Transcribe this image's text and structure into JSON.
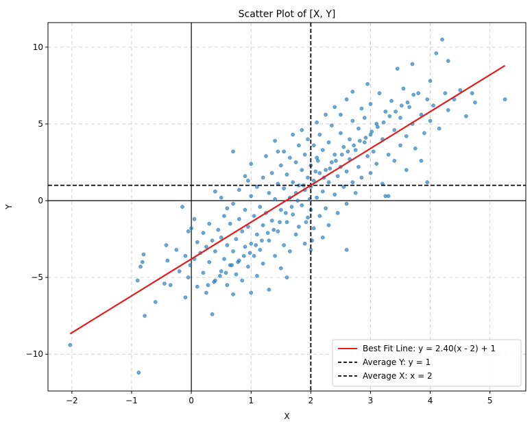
{
  "chart_data": {
    "type": "scatter",
    "title": "Scatter Plot of [X, Y]",
    "xlabel": "X",
    "ylabel": "Y",
    "xlim": [
      -2.4,
      5.6
    ],
    "ylim": [
      -12.4,
      11.6
    ],
    "xticks": [
      -2,
      -1,
      0,
      1,
      2,
      3,
      4,
      5
    ],
    "yticks": [
      -10,
      -5,
      0,
      5,
      10
    ],
    "xtick_labels": [
      "−2",
      "−1",
      "0",
      "1",
      "2",
      "3",
      "4",
      "5"
    ],
    "ytick_labels": [
      "−10",
      "−5",
      "0",
      "5",
      "10"
    ],
    "grid": true,
    "legend_position": "lower-right",
    "series": [
      {
        "kind": "points",
        "color": "#1f77b4",
        "points": [
          [
            -2.03,
            -9.4
          ],
          [
            -0.88,
            -11.2
          ],
          [
            -0.9,
            -5.2
          ],
          [
            -0.85,
            -4.3
          ],
          [
            -0.8,
            -3.5
          ],
          [
            -0.78,
            -7.5
          ],
          [
            -0.82,
            -4.0
          ],
          [
            -0.6,
            -6.6
          ],
          [
            -0.45,
            -5.4
          ],
          [
            -0.4,
            -3.9
          ],
          [
            -0.42,
            -2.9
          ],
          [
            -0.35,
            -5.5
          ],
          [
            -0.25,
            -3.2
          ],
          [
            -0.2,
            -4.6
          ],
          [
            -0.15,
            -0.4
          ],
          [
            -0.1,
            -6.3
          ],
          [
            -0.1,
            -3.6
          ],
          [
            -0.05,
            -5.0
          ],
          [
            -0.02,
            -4.2
          ],
          [
            0.0,
            -1.8
          ],
          [
            -0.05,
            -2.0
          ],
          [
            0.05,
            -3.8
          ],
          [
            0.1,
            -2.7
          ],
          [
            0.05,
            -1.2
          ],
          [
            0.1,
            -5.6
          ],
          [
            0.15,
            -3.4
          ],
          [
            0.2,
            -2.1
          ],
          [
            0.2,
            -4.7
          ],
          [
            0.25,
            -3.0
          ],
          [
            0.25,
            -6.0
          ],
          [
            0.3,
            -1.5
          ],
          [
            0.3,
            -4.0
          ],
          [
            0.35,
            -7.4
          ],
          [
            0.35,
            -2.6
          ],
          [
            0.4,
            -5.2
          ],
          [
            0.4,
            -3.3
          ],
          [
            0.4,
            0.6
          ],
          [
            0.45,
            -1.9
          ],
          [
            0.5,
            -4.6
          ],
          [
            0.5,
            -2.4
          ],
          [
            0.5,
            0.2
          ],
          [
            0.55,
            -3.8
          ],
          [
            0.55,
            -1.0
          ],
          [
            0.6,
            -5.5
          ],
          [
            0.6,
            -2.9
          ],
          [
            0.6,
            -0.5
          ],
          [
            0.65,
            -4.2
          ],
          [
            0.65,
            -1.5
          ],
          [
            0.7,
            -6.1
          ],
          [
            0.7,
            -3.3
          ],
          [
            0.7,
            -0.2
          ],
          [
            0.7,
            3.2
          ],
          [
            0.75,
            -2.5
          ],
          [
            0.75,
            -4.8
          ],
          [
            0.8,
            -1.2
          ],
          [
            0.8,
            -3.9
          ],
          [
            0.8,
            0.7
          ],
          [
            0.85,
            -2.0
          ],
          [
            0.85,
            -5.2
          ],
          [
            0.9,
            -0.6
          ],
          [
            0.9,
            -3.0
          ],
          [
            0.9,
            1.6
          ],
          [
            0.95,
            -4.3
          ],
          [
            0.95,
            -1.7
          ],
          [
            1.0,
            -6.0
          ],
          [
            1.0,
            -2.8
          ],
          [
            1.0,
            0.3
          ],
          [
            1.0,
            2.4
          ],
          [
            1.05,
            -3.6
          ],
          [
            1.05,
            -1.0
          ],
          [
            1.1,
            -4.9
          ],
          [
            1.1,
            -2.2
          ],
          [
            1.1,
            0.9
          ],
          [
            1.15,
            -0.4
          ],
          [
            1.15,
            -3.2
          ],
          [
            1.2,
            1.5
          ],
          [
            1.2,
            -1.6
          ],
          [
            1.2,
            -4.1
          ],
          [
            1.25,
            2.9
          ],
          [
            1.25,
            -0.8
          ],
          [
            1.3,
            -2.6
          ],
          [
            1.3,
            0.5
          ],
          [
            1.3,
            -5.8
          ],
          [
            1.35,
            1.8
          ],
          [
            1.35,
            -1.3
          ],
          [
            1.4,
            -3.6
          ],
          [
            1.4,
            3.9
          ],
          [
            1.4,
            0.1
          ],
          [
            1.45,
            -2.0
          ],
          [
            1.45,
            1.1
          ],
          [
            1.5,
            -0.6
          ],
          [
            1.5,
            -4.4
          ],
          [
            1.5,
            2.3
          ],
          [
            1.55,
            0.8
          ],
          [
            1.55,
            -2.9
          ],
          [
            1.55,
            3.2
          ],
          [
            1.6,
            -1.4
          ],
          [
            1.6,
            1.7
          ],
          [
            1.6,
            -5.0
          ],
          [
            1.65,
            0.2
          ],
          [
            1.65,
            2.8
          ],
          [
            1.65,
            -3.3
          ],
          [
            1.7,
            4.3
          ],
          [
            1.7,
            -0.9
          ],
          [
            1.7,
            1.2
          ],
          [
            1.75,
            -2.2
          ],
          [
            1.75,
            2.5
          ],
          [
            1.75,
            0.5
          ],
          [
            1.8,
            -1.7
          ],
          [
            1.8,
            3.6
          ],
          [
            1.8,
            1.0
          ],
          [
            1.85,
            -0.3
          ],
          [
            1.85,
            4.6
          ],
          [
            1.85,
            2.0
          ],
          [
            1.9,
            -2.8
          ],
          [
            1.9,
            0.7
          ],
          [
            1.9,
            3.0
          ],
          [
            1.95,
            -1.1
          ],
          [
            1.95,
            1.5
          ],
          [
            1.95,
            4.0
          ],
          [
            2.0,
            -0.6
          ],
          [
            2.0,
            2.3
          ],
          [
            2.0,
            0.9
          ],
          [
            2.0,
            -3.2
          ],
          [
            2.05,
            3.6
          ],
          [
            2.05,
            1.3
          ],
          [
            2.05,
            -1.8
          ],
          [
            2.1,
            5.1
          ],
          [
            2.1,
            0.2
          ],
          [
            2.1,
            2.8
          ],
          [
            2.15,
            -1.0
          ],
          [
            2.15,
            4.3
          ],
          [
            2.15,
            1.8
          ],
          [
            2.2,
            -2.4
          ],
          [
            2.2,
            3.3
          ],
          [
            2.2,
            0.6
          ],
          [
            2.25,
            5.6
          ],
          [
            2.25,
            2.0
          ],
          [
            2.25,
            -0.5
          ],
          [
            2.3,
            3.8
          ],
          [
            2.3,
            1.2
          ],
          [
            2.3,
            -1.6
          ],
          [
            2.35,
            4.9
          ],
          [
            2.35,
            2.5
          ],
          [
            2.4,
            0.4
          ],
          [
            2.4,
            6.1
          ],
          [
            2.4,
            3.0
          ],
          [
            2.45,
            1.6
          ],
          [
            2.45,
            -0.8
          ],
          [
            2.5,
            4.4
          ],
          [
            2.5,
            2.2
          ],
          [
            2.5,
            5.6
          ],
          [
            2.55,
            0.9
          ],
          [
            2.55,
            3.5
          ],
          [
            2.6,
            6.6
          ],
          [
            2.6,
            1.9
          ],
          [
            2.6,
            -0.2
          ],
          [
            2.65,
            4.0
          ],
          [
            2.65,
            2.7
          ],
          [
            2.7,
            7.1
          ],
          [
            2.7,
            1.2
          ],
          [
            2.7,
            5.2
          ],
          [
            2.75,
            3.3
          ],
          [
            2.75,
            0.5
          ],
          [
            2.8,
            4.7
          ],
          [
            2.8,
            2.2
          ],
          [
            2.85,
            6.0
          ],
          [
            2.85,
            1.5
          ],
          [
            2.9,
            3.8
          ],
          [
            2.9,
            5.4
          ],
          [
            2.95,
            2.9
          ],
          [
            2.95,
            7.6
          ],
          [
            3.0,
            4.3
          ],
          [
            3.0,
            1.8
          ],
          [
            3.0,
            6.3
          ],
          [
            3.05,
            3.2
          ],
          [
            3.1,
            5.0
          ],
          [
            3.1,
            2.4
          ],
          [
            3.15,
            7.0
          ],
          [
            3.2,
            4.0
          ],
          [
            3.2,
            1.1
          ],
          [
            3.25,
            5.8
          ],
          [
            3.3,
            3.0
          ],
          [
            3.3,
            0.3
          ],
          [
            3.35,
            6.5
          ],
          [
            3.4,
            4.6
          ],
          [
            3.4,
            2.6
          ],
          [
            3.45,
            8.6
          ],
          [
            3.5,
            5.4
          ],
          [
            3.5,
            3.6
          ],
          [
            3.55,
            7.3
          ],
          [
            3.6,
            4.2
          ],
          [
            3.6,
            2.0
          ],
          [
            3.65,
            6.1
          ],
          [
            3.7,
            8.9
          ],
          [
            3.7,
            5.0
          ],
          [
            3.75,
            3.4
          ],
          [
            3.8,
            7.0
          ],
          [
            3.85,
            5.6
          ],
          [
            3.9,
            4.4
          ],
          [
            3.95,
            6.6
          ],
          [
            3.95,
            1.2
          ],
          [
            4.0,
            5.2
          ],
          [
            4.0,
            7.8
          ],
          [
            4.05,
            6.2
          ],
          [
            4.1,
            9.6
          ],
          [
            4.15,
            4.7
          ],
          [
            4.2,
            10.5
          ],
          [
            4.25,
            7.0
          ],
          [
            4.3,
            5.9
          ],
          [
            4.3,
            9.1
          ],
          [
            4.4,
            6.6
          ],
          [
            4.5,
            7.2
          ],
          [
            4.6,
            5.5
          ],
          [
            4.7,
            7.0
          ],
          [
            4.75,
            6.4
          ],
          [
            5.25,
            6.6
          ],
          [
            2.02,
            -2.6
          ],
          [
            1.92,
            -1.4
          ],
          [
            2.08,
            1.9
          ],
          [
            1.98,
            0.1
          ],
          [
            2.12,
            2.6
          ],
          [
            1.88,
            1.0
          ],
          [
            2.22,
            1.5
          ],
          [
            1.78,
            0.0
          ],
          [
            2.32,
            2.1
          ],
          [
            1.68,
            -0.4
          ],
          [
            2.42,
            2.6
          ],
          [
            1.58,
            -0.8
          ],
          [
            2.52,
            3.0
          ],
          [
            1.48,
            -1.4
          ],
          [
            2.62,
            3.2
          ],
          [
            1.38,
            -1.9
          ],
          [
            2.72,
            3.6
          ],
          [
            1.28,
            -2.1
          ],
          [
            2.82,
            3.9
          ],
          [
            1.18,
            -2.6
          ],
          [
            2.92,
            4.1
          ],
          [
            1.08,
            -2.9
          ],
          [
            3.02,
            4.5
          ],
          [
            0.98,
            -3.4
          ],
          [
            3.12,
            4.8
          ],
          [
            0.88,
            -3.6
          ],
          [
            3.22,
            5.1
          ],
          [
            0.78,
            -4.0
          ],
          [
            3.32,
            5.5
          ],
          [
            0.68,
            -4.2
          ],
          [
            3.42,
            5.8
          ],
          [
            0.58,
            -4.7
          ],
          [
            3.52,
            6.2
          ],
          [
            0.48,
            -4.9
          ],
          [
            3.62,
            6.4
          ],
          [
            0.38,
            -5.3
          ],
          [
            3.72,
            6.9
          ],
          [
            0.28,
            -5.5
          ],
          [
            2.6,
            -3.2
          ],
          [
            3.25,
            0.3
          ],
          [
            1.45,
            3.2
          ],
          [
            0.95,
            1.3
          ],
          [
            3.85,
            2.6
          ]
        ]
      }
    ],
    "best_fit": {
      "label": "Best Fit Line: y = 2.40(x - 2) + 1",
      "color": "#e41a1c",
      "slope": 2.4,
      "x0": 2,
      "y0": 1,
      "x_range": [
        -2.03,
        5.25
      ]
    },
    "avg_y": {
      "label": "Average Y: y = 1",
      "value": 1,
      "color": "#000000"
    },
    "avg_x": {
      "label": "Average X: x = 2",
      "value": 2,
      "color": "#000000"
    }
  }
}
